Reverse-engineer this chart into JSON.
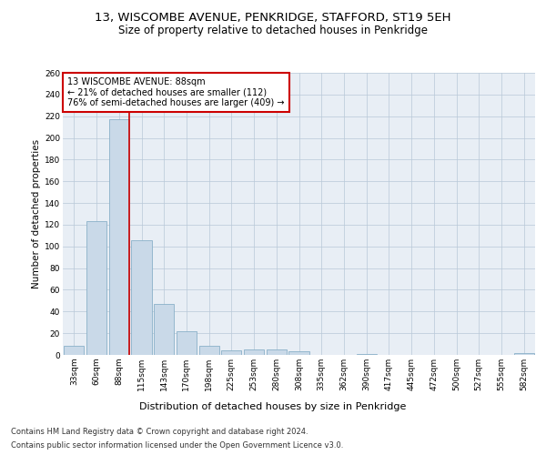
{
  "title1": "13, WISCOMBE AVENUE, PENKRIDGE, STAFFORD, ST19 5EH",
  "title2": "Size of property relative to detached houses in Penkridge",
  "xlabel": "Distribution of detached houses by size in Penkridge",
  "ylabel": "Number of detached properties",
  "bar_labels": [
    "33sqm",
    "60sqm",
    "88sqm",
    "115sqm",
    "143sqm",
    "170sqm",
    "198sqm",
    "225sqm",
    "253sqm",
    "280sqm",
    "308sqm",
    "335sqm",
    "362sqm",
    "390sqm",
    "417sqm",
    "445sqm",
    "472sqm",
    "500sqm",
    "527sqm",
    "555sqm",
    "582sqm"
  ],
  "bar_values": [
    8,
    123,
    217,
    106,
    47,
    22,
    8,
    4,
    5,
    5,
    3,
    0,
    0,
    1,
    0,
    0,
    0,
    0,
    0,
    0,
    2
  ],
  "bar_color": "#c9d9e8",
  "bar_edge_color": "#8ab0c8",
  "highlight_index": 2,
  "highlight_line_color": "#cc0000",
  "annotation_text": "13 WISCOMBE AVENUE: 88sqm\n← 21% of detached houses are smaller (112)\n76% of semi-detached houses are larger (409) →",
  "annotation_box_color": "#ffffff",
  "annotation_box_edge": "#cc0000",
  "ylim": [
    0,
    260
  ],
  "yticks": [
    0,
    20,
    40,
    60,
    80,
    100,
    120,
    140,
    160,
    180,
    200,
    220,
    240,
    260
  ],
  "plot_background": "#e8eef5",
  "footer1": "Contains HM Land Registry data © Crown copyright and database right 2024.",
  "footer2": "Contains public sector information licensed under the Open Government Licence v3.0.",
  "title1_fontsize": 9.5,
  "title2_fontsize": 8.5,
  "xlabel_fontsize": 8,
  "ylabel_fontsize": 7.5,
  "tick_fontsize": 6.5,
  "annotation_fontsize": 7,
  "footer_fontsize": 6
}
